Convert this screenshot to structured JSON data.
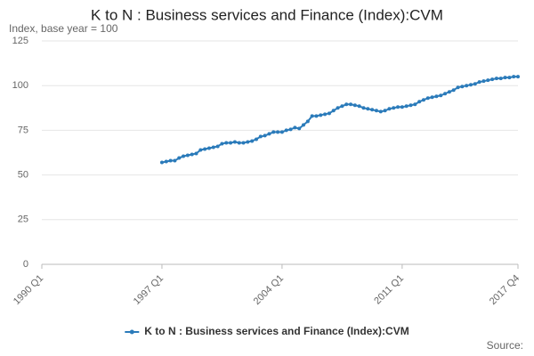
{
  "chart_data": {
    "type": "line",
    "title": "K to N : Business services and Finance (Index):CVM",
    "subtitle": "Index, base year = 100",
    "source": "Source:",
    "categories": [
      "1990 Q1",
      null,
      null,
      null,
      null,
      null,
      null,
      null,
      null,
      null,
      null,
      null,
      null,
      null,
      null,
      null,
      null,
      null,
      null,
      null,
      null,
      null,
      null,
      null,
      null,
      null,
      null,
      null,
      "1997 Q1",
      null,
      null,
      null,
      null,
      null,
      null,
      null,
      null,
      null,
      null,
      null,
      null,
      null,
      null,
      null,
      null,
      null,
      null,
      null,
      null,
      null,
      null,
      null,
      null,
      null,
      null,
      null,
      "2004 Q1",
      null,
      null,
      null,
      null,
      null,
      null,
      null,
      null,
      null,
      null,
      null,
      null,
      null,
      null,
      null,
      null,
      null,
      null,
      null,
      null,
      null,
      null,
      null,
      null,
      null,
      null,
      null,
      "2011 Q1",
      null,
      null,
      null,
      null,
      null,
      null,
      null,
      null,
      null,
      null,
      null,
      null,
      null,
      null,
      null,
      null,
      null,
      null,
      null,
      null,
      null,
      null,
      null,
      null,
      null,
      null,
      "2017 Q4"
    ],
    "series": [
      {
        "name": "K to N : Business services and Finance (Index):CVM",
        "color": "#2b7bba",
        "values": [
          null,
          null,
          null,
          null,
          null,
          null,
          null,
          null,
          null,
          null,
          null,
          null,
          null,
          null,
          null,
          null,
          null,
          null,
          null,
          null,
          null,
          null,
          null,
          null,
          null,
          null,
          null,
          null,
          57,
          57.5,
          58,
          58,
          59.5,
          60.5,
          61,
          61.5,
          62,
          64,
          64.5,
          65,
          65.5,
          66,
          67.5,
          68,
          68,
          68.5,
          68,
          68,
          68.5,
          69,
          70,
          71.5,
          72,
          73,
          74,
          74,
          74,
          75,
          75.5,
          76.5,
          76,
          78,
          80,
          83,
          83,
          83.5,
          84,
          84.5,
          86,
          87.5,
          88.5,
          89.5,
          89.5,
          89,
          88.5,
          87.5,
          87,
          86.5,
          86,
          85.5,
          86,
          87,
          87.5,
          88,
          88,
          88.5,
          89,
          89.5,
          91,
          92,
          93,
          93.5,
          94,
          94.5,
          95.5,
          96.5,
          97.5,
          99,
          99.5,
          100,
          100.5,
          101,
          102,
          102.5,
          103,
          103.5,
          104,
          104,
          104.5,
          104.5,
          105,
          105
        ]
      }
    ],
    "ylim": [
      0,
      125
    ],
    "yticks": [
      0,
      25,
      50,
      75,
      100,
      125
    ],
    "grid": true
  }
}
